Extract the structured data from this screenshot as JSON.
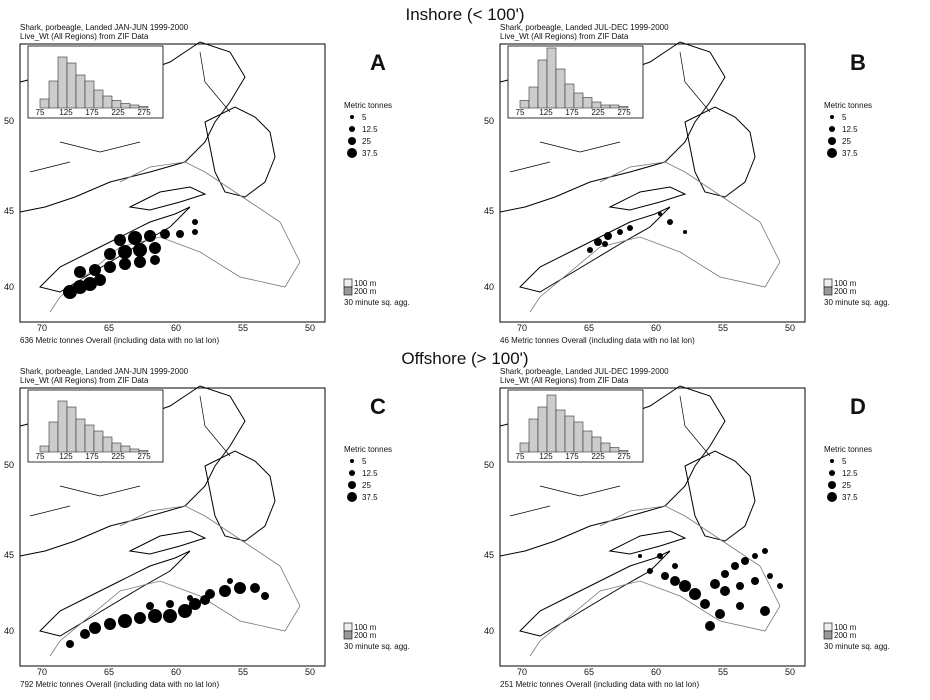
{
  "sections": [
    {
      "title": "Inshore (< 100')",
      "panels": [
        {
          "letter": "A",
          "title": "Shark, porbeagle, Landed JAN-JUN 1999-2000",
          "subtitle": "Live_Wt  (All Regions) from ZIF Data",
          "legend_title": "Metric tonnes",
          "legend_labels": [
            "5",
            "12.5",
            "25",
            "37.5"
          ],
          "depth_labels": [
            "100 m",
            "200 m"
          ],
          "aggregation": "30 minute sq. agg.",
          "footer": "636 Metric tonnes Overall (including data with no lat lon)",
          "x_ticks": [
            "70",
            "65",
            "60",
            "55",
            "50"
          ],
          "y_ticks": [
            "50",
            "45",
            "40"
          ],
          "hist_ticks": [
            "75",
            "125",
            "175",
            "225",
            "275"
          ]
        },
        {
          "letter": "B",
          "title": "Shark, porbeagle, Landed JUL-DEC 1999-2000",
          "subtitle": "Live_Wt  (All Regions) from ZIF Data",
          "legend_title": "Metric tonnes",
          "legend_labels": [
            "5",
            "12.5",
            "25",
            "37.5"
          ],
          "depth_labels": [
            "100 m",
            "200 m"
          ],
          "aggregation": "30 minute sq. agg.",
          "footer": "46 Metric tonnes Overall (including data with no lat lon)",
          "x_ticks": [
            "70",
            "65",
            "60",
            "55",
            "50"
          ],
          "y_ticks": [
            "50",
            "45",
            "40"
          ],
          "hist_ticks": [
            "75",
            "125",
            "175",
            "225",
            "275"
          ]
        }
      ]
    },
    {
      "title": "Offshore (> 100')",
      "panels": [
        {
          "letter": "C",
          "title": "Shark, porbeagle, Landed JAN-JUN 1999-2000",
          "subtitle": "Live_Wt  (All Regions) from ZIF Data",
          "legend_title": "Metric tonnes",
          "legend_labels": [
            "5",
            "12.5",
            "25",
            "37.5"
          ],
          "depth_labels": [
            "100 m",
            "200 m"
          ],
          "aggregation": "30 minute sq. agg.",
          "footer": "792 Metric tonnes Overall (including data with no lat lon)",
          "x_ticks": [
            "70",
            "65",
            "60",
            "55",
            "50"
          ],
          "y_ticks": [
            "50",
            "45",
            "40"
          ],
          "hist_ticks": [
            "75",
            "125",
            "175",
            "225",
            "275"
          ]
        },
        {
          "letter": "D",
          "title": "Shark, porbeagle, Landed JUL-DEC 1999-2000",
          "subtitle": "Live_Wt  (All Regions) from ZIF Data",
          "legend_title": "Metric tonnes",
          "legend_labels": [
            "5",
            "12.5",
            "25",
            "37.5"
          ],
          "depth_labels": [
            "100 m",
            "200 m"
          ],
          "aggregation": "30 minute sq. agg.",
          "footer": "251 Metric tonnes Overall (including data with no lat lon)",
          "x_ticks": [
            "70",
            "65",
            "60",
            "55",
            "50"
          ],
          "y_ticks": [
            "50",
            "45",
            "40"
          ],
          "hist_ticks": [
            "75",
            "125",
            "175",
            "225",
            "275"
          ]
        }
      ]
    }
  ]
}
